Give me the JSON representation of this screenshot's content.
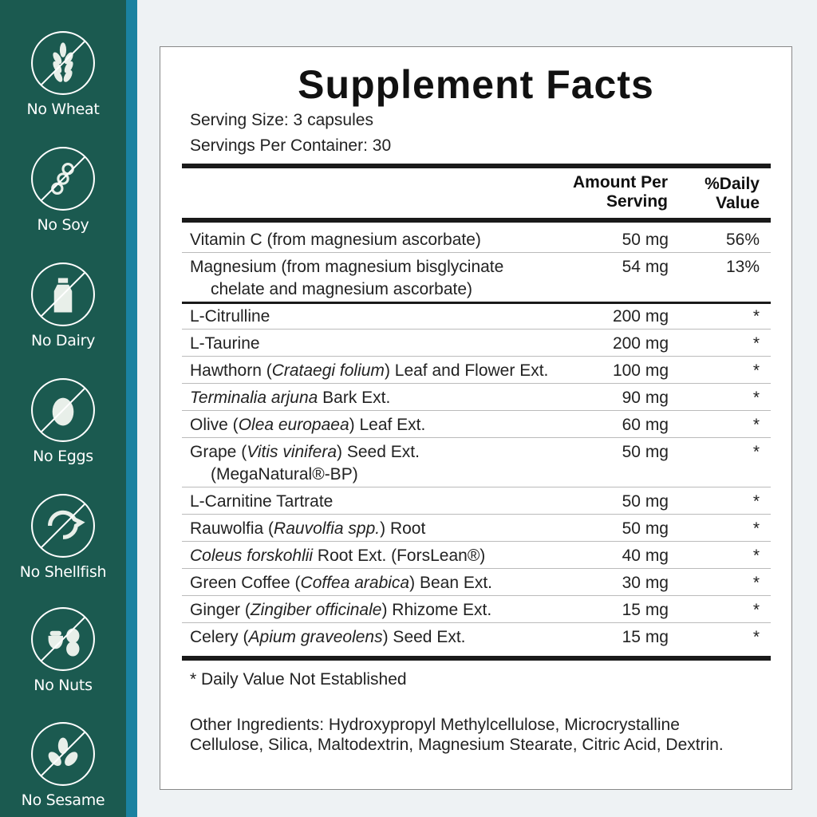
{
  "colors": {
    "sidebar": "#1b5a50",
    "stripe": "#1a82a0",
    "background": "#eef2f4"
  },
  "badges": [
    {
      "label": "No Wheat",
      "icon": "wheat-icon"
    },
    {
      "label": "No Soy",
      "icon": "soy-icon"
    },
    {
      "label": "No Dairy",
      "icon": "milk-bottle-icon"
    },
    {
      "label": "No Eggs",
      "icon": "egg-icon"
    },
    {
      "label": "No Shellfish",
      "icon": "shrimp-icon"
    },
    {
      "label": "No Nuts",
      "icon": "nuts-icon"
    },
    {
      "label": "No Sesame",
      "icon": "sesame-leaf-icon"
    }
  ],
  "facts": {
    "title": "Supplement Facts",
    "serving_size": "Serving Size: 3 capsules",
    "servings_per_container": "Servings Per Container: 30",
    "col_amount": [
      "Amount Per",
      "Serving"
    ],
    "col_dv": [
      "%Daily",
      "Value"
    ],
    "rows": [
      {
        "name": [
          [
            "Vitamin C (from magnesium ascorbate)",
            false
          ]
        ],
        "name2": "",
        "amount": "50 mg",
        "dv": "56%"
      },
      {
        "name": [
          [
            "Magnesium (from magnesium bisglycinate",
            false
          ]
        ],
        "name2": "chelate and magnesium ascorbate)",
        "amount": "54 mg",
        "dv": "13%"
      },
      {
        "name": [
          [
            "L-Citrulline",
            false
          ]
        ],
        "name2": "",
        "amount": "200 mg",
        "dv": "*"
      },
      {
        "name": [
          [
            "L-Taurine",
            false
          ]
        ],
        "name2": "",
        "amount": "200 mg",
        "dv": "*"
      },
      {
        "name": [
          [
            "Hawthorn (",
            false
          ],
          [
            "Crataegi folium",
            true
          ],
          [
            ") Leaf and Flower Ext.",
            false
          ]
        ],
        "name2": "",
        "amount": "100 mg",
        "dv": "*"
      },
      {
        "name": [
          [
            "Terminalia arjuna",
            true
          ],
          [
            " Bark Ext.",
            false
          ]
        ],
        "name2": "",
        "amount": "90 mg",
        "dv": "*"
      },
      {
        "name": [
          [
            "Olive (",
            false
          ],
          [
            "Olea europaea",
            true
          ],
          [
            ") Leaf Ext.",
            false
          ]
        ],
        "name2": "",
        "amount": "60 mg",
        "dv": "*"
      },
      {
        "name": [
          [
            "Grape (",
            false
          ],
          [
            "Vitis vinifera",
            true
          ],
          [
            ") Seed Ext.",
            false
          ]
        ],
        "name2": "(MegaNatural®-BP)",
        "amount": "50 mg",
        "dv": "*"
      },
      {
        "name": [
          [
            "L-Carnitine Tartrate",
            false
          ]
        ],
        "name2": "",
        "amount": "50 mg",
        "dv": "*"
      },
      {
        "name": [
          [
            "Rauwolfia (",
            false
          ],
          [
            "Rauvolfia spp.",
            true
          ],
          [
            ") Root",
            false
          ]
        ],
        "name2": "",
        "amount": "50 mg",
        "dv": "*"
      },
      {
        "name": [
          [
            "Coleus forskohlii",
            true
          ],
          [
            " Root Ext. (ForsLean®)",
            false
          ]
        ],
        "name2": "",
        "amount": "40 mg",
        "dv": "*"
      },
      {
        "name": [
          [
            "Green Coffee (",
            false
          ],
          [
            "Coffea arabica",
            true
          ],
          [
            ") Bean Ext.",
            false
          ]
        ],
        "name2": "",
        "amount": "30 mg",
        "dv": "*"
      },
      {
        "name": [
          [
            "Ginger (",
            false
          ],
          [
            "Zingiber officinale",
            true
          ],
          [
            ") Rhizome Ext.",
            false
          ]
        ],
        "name2": "",
        "amount": "15 mg",
        "dv": "*"
      },
      {
        "name": [
          [
            "Celery (",
            false
          ],
          [
            "Apium graveolens",
            true
          ],
          [
            ") Seed Ext.",
            false
          ]
        ],
        "name2": "",
        "amount": "15 mg",
        "dv": "*"
      }
    ],
    "footnote": "* Daily Value Not Established",
    "other_ingredients": "Other Ingredients: Hydroxypropyl Methylcellulose, Microcrystalline Cellulose, Silica, Maltodextrin, Magnesium Stearate, Citric Acid, Dextrin."
  }
}
